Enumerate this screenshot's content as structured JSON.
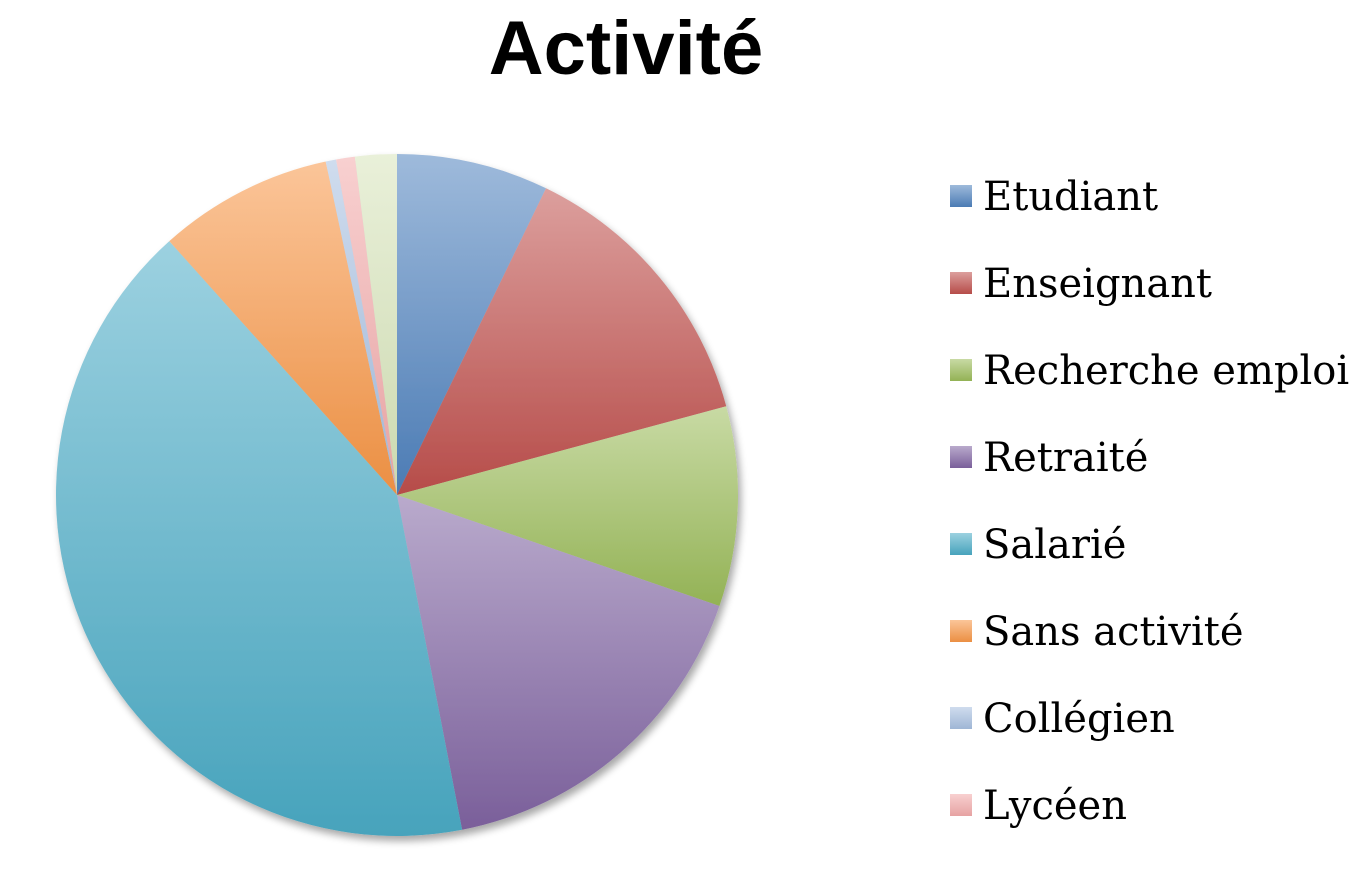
{
  "chart_data": {
    "type": "pie",
    "title": "Activité",
    "legend_position": "right",
    "slices": [
      {
        "label": "Etudiant",
        "value": 7.3,
        "color": "#4f81bd"
      },
      {
        "label": "Enseignant",
        "value": 13.8,
        "color": "#c0504d"
      },
      {
        "label": "Recherche emploi",
        "value": 9.6,
        "color": "#9bbb59"
      },
      {
        "label": "Retraité",
        "value": 16.9,
        "color": "#8064a2"
      },
      {
        "label": "Salarié",
        "value": 42.0,
        "color": "#4bacc6"
      },
      {
        "label": "Sans activité",
        "value": 8.4,
        "color": "#f79646"
      },
      {
        "label": "Collégien",
        "value": 0.5,
        "color": "#a7c0e0"
      },
      {
        "label": "Lycéen",
        "value": 0.9,
        "color": "#f2aaaa"
      },
      {
        "label": "",
        "value": 2.0,
        "color": "#d7e4b9"
      }
    ],
    "legend": [
      "Etudiant",
      "Enseignant",
      "Recherche emploi",
      "Retraité",
      "Salarié",
      "Sans activité",
      "Collégien",
      "Lycéen"
    ]
  }
}
